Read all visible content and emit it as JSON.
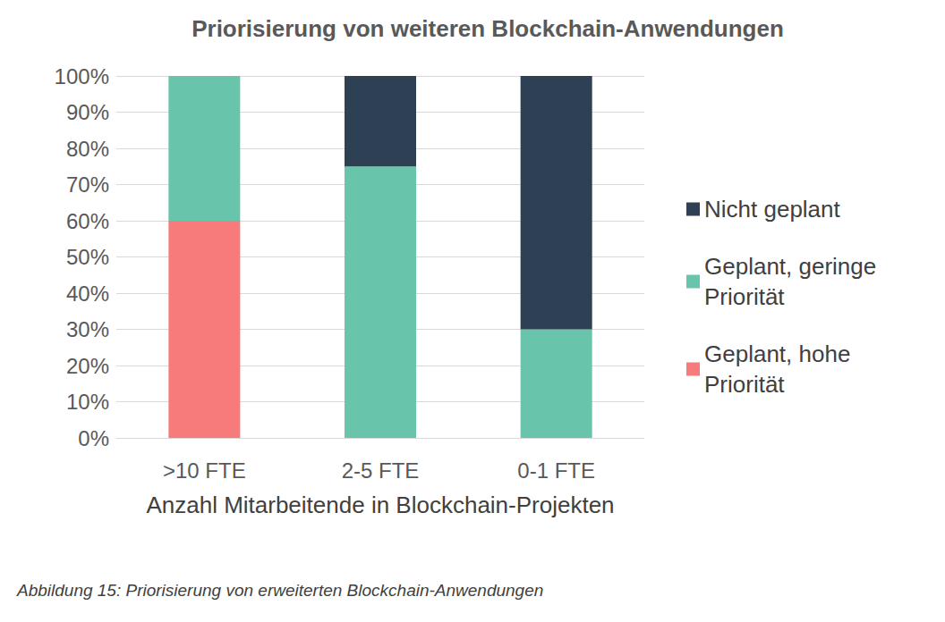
{
  "chart_data": {
    "type": "bar",
    "title": "Priorisierung von weiteren Blockchain-Anwendungen",
    "x_label": "Anzahl Mitarbeitende in Blockchain-Projekten",
    "caption": "Abbildung 15: Priorisierung von erweiterten Blockchain-Anwendungen",
    "categories": [
      ">10 FTE",
      "2-5 FTE",
      "0-1 FTE"
    ],
    "series": [
      {
        "name": "Geplant, hohe Priorität",
        "color": "#f77b7b",
        "values": [
          60,
          0,
          0
        ]
      },
      {
        "name": "Geplant, geringe Priorität",
        "color": "#68c5ab",
        "values": [
          40,
          75,
          30
        ]
      },
      {
        "name": "Nicht geplant",
        "color": "#2e4053",
        "values": [
          0,
          25,
          70
        ]
      }
    ],
    "stacked": true,
    "ylim": [
      0,
      100
    ],
    "yticks": [
      {
        "value": 0,
        "label": "0%"
      },
      {
        "value": 10,
        "label": "10%"
      },
      {
        "value": 20,
        "label": "20%"
      },
      {
        "value": 30,
        "label": "30%"
      },
      {
        "value": 40,
        "label": "40%"
      },
      {
        "value": 50,
        "label": "50%"
      },
      {
        "value": 60,
        "label": "60%"
      },
      {
        "value": 70,
        "label": "70%"
      },
      {
        "value": 80,
        "label": "80%"
      },
      {
        "value": 90,
        "label": "90%"
      },
      {
        "value": 100,
        "label": "100%"
      }
    ],
    "grid": true,
    "legend": "right"
  }
}
